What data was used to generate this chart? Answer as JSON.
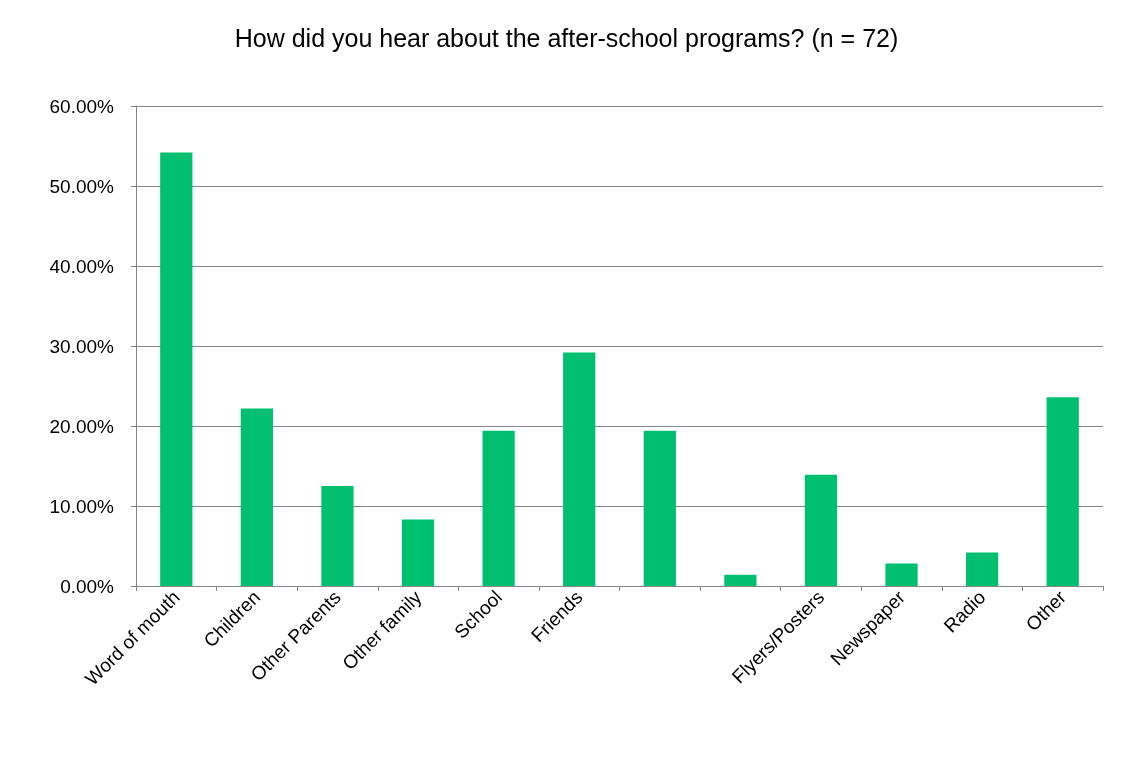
{
  "chart_data": {
    "type": "bar",
    "title": "How did you hear about the after-school programs? (n = 72)",
    "categories": [
      "Word of mouth",
      "Children",
      "Other Parents",
      "Other family",
      "School",
      "Friends",
      null,
      null,
      "Flyers/Posters",
      "Newspaper",
      "Radio",
      "Other"
    ],
    "values": [
      54.2,
      22.2,
      12.5,
      8.3,
      19.4,
      29.2,
      19.4,
      1.4,
      13.9,
      2.8,
      4.2,
      23.6
    ],
    "color": "#00bf6f",
    "ylim": [
      0,
      60
    ],
    "yticks": [
      {
        "value": 0,
        "label": "0.00%"
      },
      {
        "value": 10,
        "label": "10.00%"
      },
      {
        "value": 20,
        "label": "20.00%"
      },
      {
        "value": 30,
        "label": "30.00%"
      },
      {
        "value": 40,
        "label": "40.00%"
      },
      {
        "value": 50,
        "label": "50.00%"
      },
      {
        "value": 60,
        "label": "60.00%"
      }
    ],
    "grid": "y"
  }
}
